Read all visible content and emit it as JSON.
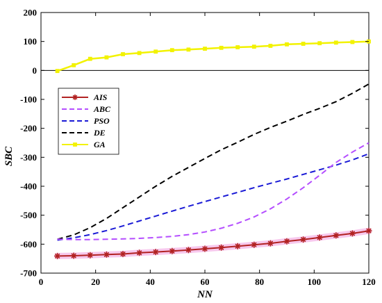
{
  "chart_data": {
    "type": "line",
    "xlabel": "NN",
    "ylabel": "SBC",
    "xlim": [
      0,
      120
    ],
    "ylim": [
      -700,
      200
    ],
    "xticks": [
      0,
      20,
      40,
      60,
      80,
      100,
      120
    ],
    "yticks": [
      -700,
      -600,
      -500,
      -400,
      -300,
      -200,
      -100,
      0,
      100,
      200
    ],
    "grid": false,
    "legend_position": "left",
    "zero_line": true,
    "x": [
      6,
      12,
      18,
      24,
      30,
      36,
      42,
      48,
      54,
      60,
      66,
      72,
      78,
      84,
      90,
      96,
      102,
      108,
      114,
      120
    ],
    "series": [
      {
        "name": "AIS",
        "color": "#b22222",
        "style": "solid-marker",
        "marker": "*",
        "values": [
          -641,
          -640,
          -638,
          -636,
          -634,
          -630,
          -627,
          -624,
          -620,
          -616,
          -612,
          -607,
          -602,
          -597,
          -590,
          -584,
          -577,
          -570,
          -563,
          -554
        ]
      },
      {
        "name": "ABC",
        "color": "#b44dff",
        "style": "dashed",
        "values": [
          -583,
          -584,
          -584,
          -583,
          -582,
          -580,
          -577,
          -573,
          -567,
          -558,
          -545,
          -528,
          -506,
          -478,
          -444,
          -405,
          -362,
          -318,
          -282,
          -250
        ]
      },
      {
        "name": "PSO",
        "color": "#1a1ad6",
        "style": "dashed",
        "values": [
          -586,
          -578,
          -567,
          -553,
          -537,
          -520,
          -503,
          -486,
          -469,
          -453,
          -437,
          -421,
          -405,
          -390,
          -375,
          -359,
          -343,
          -327,
          -309,
          -288
        ]
      },
      {
        "name": "DE",
        "color": "#000000",
        "style": "dashed",
        "values": [
          -583,
          -568,
          -543,
          -511,
          -474,
          -437,
          -400,
          -366,
          -335,
          -304,
          -274,
          -248,
          -221,
          -197,
          -175,
          -152,
          -131,
          -108,
          -79,
          -47
        ]
      },
      {
        "name": "GA",
        "color": "#f2f200",
        "style": "solid-marker",
        "marker": "square",
        "values": [
          -2,
          18,
          40,
          45,
          56,
          60,
          65,
          70,
          72,
          75,
          78,
          80,
          82,
          85,
          90,
          92,
          94,
          96,
          98,
          100
        ]
      }
    ]
  }
}
